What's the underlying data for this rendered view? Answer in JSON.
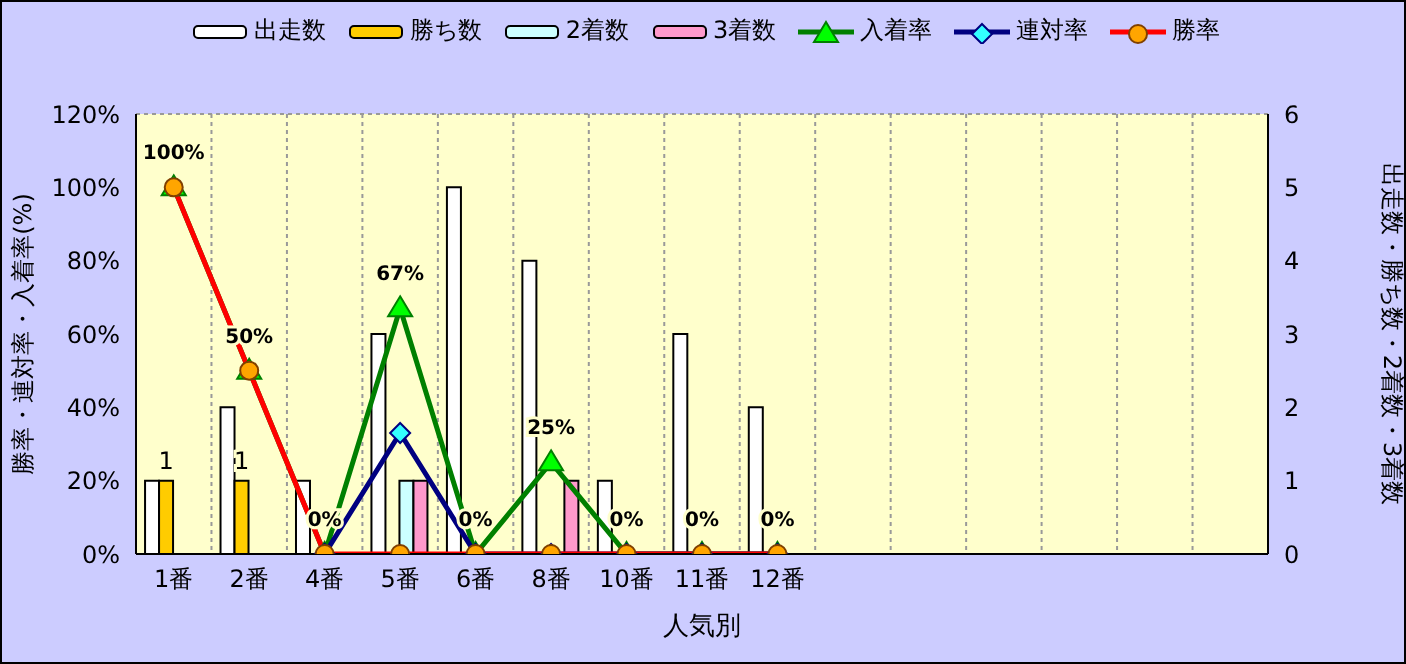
{
  "chart_data": {
    "type": "bar",
    "categories": [
      "1番",
      "2番",
      "4番",
      "5番",
      "6番",
      "8番",
      "10番",
      "11番",
      "12番",
      null,
      null,
      null,
      null,
      null,
      null
    ],
    "xlabel": "人気別",
    "ylabel": "勝率・連対率・入着率(%)",
    "y2label": "出走数・勝ち数・2着数・3着数",
    "ylim": [
      0,
      120
    ],
    "yticks": [
      {
        "value": 0,
        "label": "0%"
      },
      {
        "value": 20,
        "label": "20%"
      },
      {
        "value": 40,
        "label": "40%"
      },
      {
        "value": 60,
        "label": "60%"
      },
      {
        "value": 80,
        "label": "80%"
      },
      {
        "value": 100,
        "label": "100%"
      },
      {
        "value": 120,
        "label": "120%"
      }
    ],
    "y2lim": [
      0,
      6
    ],
    "y2ticks": [
      0,
      1,
      2,
      3,
      4,
      5,
      6
    ],
    "grid": true,
    "legend": "top",
    "series": [
      {
        "name": "出走数",
        "axis": "y2",
        "color": "#ffffff",
        "values": [
          1,
          2,
          1,
          3,
          5,
          4,
          1,
          3,
          2,
          null,
          null,
          null,
          null,
          null,
          null
        ]
      },
      {
        "name": "勝ち数",
        "axis": "y2",
        "color": "#ffcc00",
        "values": [
          1,
          1,
          0,
          0,
          0,
          0,
          0,
          0,
          0,
          null,
          null,
          null,
          null,
          null,
          null
        ],
        "value_labels": [
          "1",
          "1",
          null,
          null,
          null,
          null,
          null,
          null,
          null,
          null,
          null,
          null,
          null,
          null,
          null
        ]
      },
      {
        "name": "2着数",
        "axis": "y2",
        "color": "#ccffff",
        "values": [
          0,
          0,
          0,
          1,
          0,
          0,
          0,
          0,
          0,
          null,
          null,
          null,
          null,
          null,
          null
        ]
      },
      {
        "name": "3着数",
        "axis": "y2",
        "color": "#ff99cc",
        "values": [
          0,
          0,
          0,
          1,
          0,
          1,
          0,
          0,
          0,
          null,
          null,
          null,
          null,
          null,
          null
        ]
      },
      {
        "name": "入着率",
        "type": "line",
        "color": "#008000",
        "marker": "triangle",
        "values": [
          100,
          50,
          0,
          67,
          0,
          25,
          0,
          0,
          0,
          null,
          null,
          null,
          null,
          null,
          null
        ],
        "value_labels": [
          "100%",
          "50%",
          "0%",
          "67%",
          "0%",
          "25%",
          "0%",
          "0%",
          "0%",
          null,
          null,
          null,
          null,
          null,
          null
        ]
      },
      {
        "name": "連対率",
        "type": "line",
        "color": "#000080",
        "marker": "diamond",
        "values": [
          null,
          null,
          0,
          33,
          0,
          0,
          0,
          0,
          0,
          null,
          null,
          null,
          null,
          null,
          null
        ]
      },
      {
        "name": "勝率",
        "type": "line",
        "color": "#ff0000",
        "marker": "circle",
        "values": [
          100,
          50,
          0,
          0,
          0,
          0,
          0,
          0,
          0,
          null,
          null,
          null,
          null,
          null,
          null
        ]
      }
    ]
  }
}
